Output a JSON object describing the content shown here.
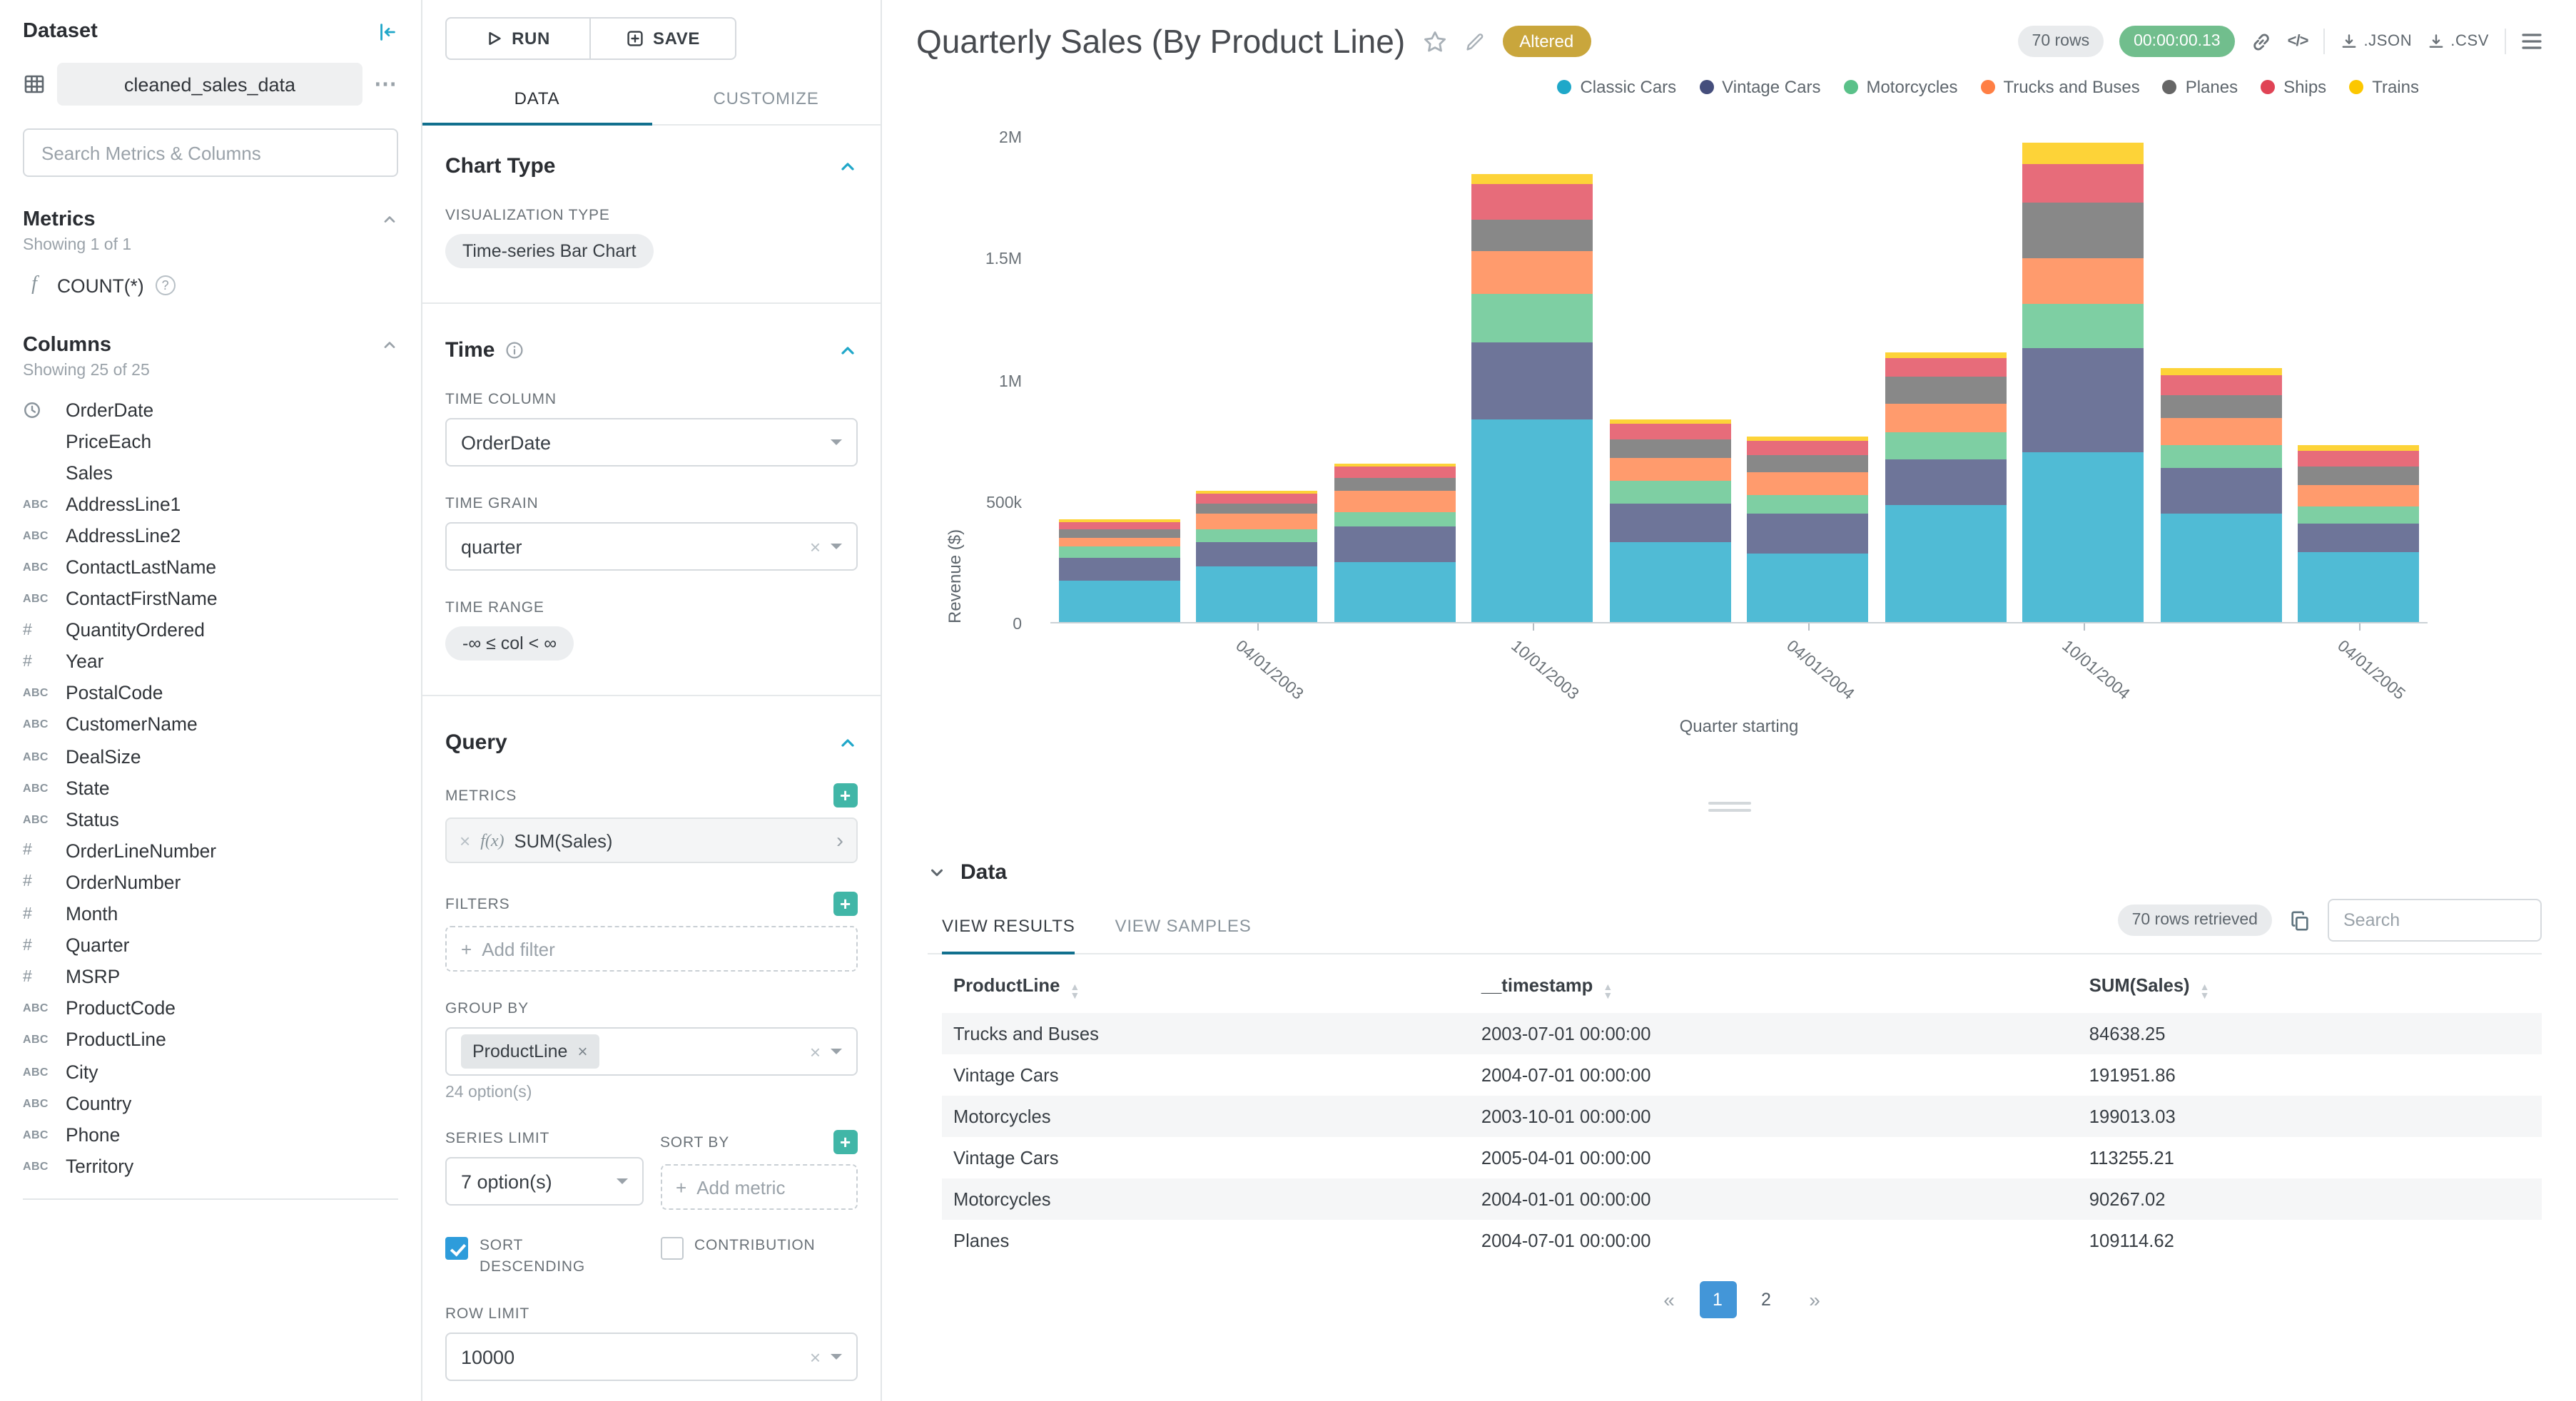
{
  "colors": {
    "primary": "#20A7C9",
    "tab_underline": "#11708E",
    "add_button": "#41B6A7",
    "altered_badge_bg": "#C9A63C",
    "timer_badge_bg": "#71BE8D",
    "checkbox_checked": "#2D9CDB",
    "pagination_active_bg": "#4396D8"
  },
  "icons": {
    "more": "⋯",
    "clear": "×",
    "help": "?",
    "plus": "+",
    "metric_fx": "f(x)",
    "code": "</>",
    "chevron_right": "›"
  },
  "dataset_panel": {
    "title": "Dataset",
    "dataset_name": "cleaned_sales_data",
    "search_placeholder": "Search Metrics & Columns",
    "metrics": {
      "title": "Metrics",
      "showing": "Showing 1 of 1",
      "items": [
        {
          "icon": "function",
          "label": "COUNT(*)"
        }
      ]
    },
    "columns": {
      "title": "Columns",
      "showing": "Showing 25 of 25",
      "items": [
        {
          "icon": "clock",
          "label": "OrderDate"
        },
        {
          "icon": "",
          "label": "PriceEach"
        },
        {
          "icon": "",
          "label": "Sales"
        },
        {
          "icon": "abc",
          "label": "AddressLine1"
        },
        {
          "icon": "abc",
          "label": "AddressLine2"
        },
        {
          "icon": "abc",
          "label": "ContactLastName"
        },
        {
          "icon": "abc",
          "label": "ContactFirstName"
        },
        {
          "icon": "num",
          "label": "QuantityOrdered"
        },
        {
          "icon": "num",
          "label": "Year"
        },
        {
          "icon": "abc",
          "label": "PostalCode"
        },
        {
          "icon": "abc",
          "label": "CustomerName"
        },
        {
          "icon": "abc",
          "label": "DealSize"
        },
        {
          "icon": "abc",
          "label": "State"
        },
        {
          "icon": "abc",
          "label": "Status"
        },
        {
          "icon": "num",
          "label": "OrderLineNumber"
        },
        {
          "icon": "num",
          "label": "OrderNumber"
        },
        {
          "icon": "num",
          "label": "Month"
        },
        {
          "icon": "num",
          "label": "Quarter"
        },
        {
          "icon": "num",
          "label": "MSRP"
        },
        {
          "icon": "abc",
          "label": "ProductCode"
        },
        {
          "icon": "abc",
          "label": "ProductLine"
        },
        {
          "icon": "abc",
          "label": "City"
        },
        {
          "icon": "abc",
          "label": "Country"
        },
        {
          "icon": "abc",
          "label": "Phone"
        },
        {
          "icon": "abc",
          "label": "Territory"
        }
      ]
    }
  },
  "control_panel": {
    "run_label": "RUN",
    "save_label": "SAVE",
    "tabs": [
      {
        "label": "DATA",
        "active": true
      },
      {
        "label": "CUSTOMIZE",
        "active": false
      }
    ],
    "chart_type": {
      "title": "Chart Type",
      "viz_type_label": "VISUALIZATION TYPE",
      "viz_type_value": "Time-series Bar Chart"
    },
    "time": {
      "title": "Time",
      "time_column_label": "TIME COLUMN",
      "time_column_value": "OrderDate",
      "time_grain_label": "TIME GRAIN",
      "time_grain_value": "quarter",
      "time_range_label": "TIME RANGE",
      "time_range_value": "-∞ ≤ col < ∞"
    },
    "query": {
      "title": "Query",
      "metrics_label": "METRICS",
      "metric_chip": "SUM(Sales)",
      "filters_label": "FILTERS",
      "add_filter_label": "Add filter",
      "group_by_label": "GROUP BY",
      "group_by_chip": "ProductLine",
      "group_by_options": "24 option(s)",
      "series_limit_label": "SERIES LIMIT",
      "series_limit_value": "7 option(s)",
      "sort_by_label": "SORT BY",
      "add_metric_label": "Add metric",
      "sort_descending_label": "SORT DESCENDING",
      "sort_descending_checked": true,
      "contribution_label": "CONTRIBUTION",
      "contribution_checked": false,
      "row_limit_label": "ROW LIMIT",
      "row_limit_value": "10000"
    }
  },
  "chart_header": {
    "title": "Quarterly Sales (By Product Line)",
    "altered_badge": "Altered",
    "rows_badge": "70 rows",
    "timer_badge": "00:00:00.13",
    "json_label": ".JSON",
    "csv_label": ".CSV"
  },
  "chart_data": {
    "type": "bar",
    "stacked": true,
    "title": "Quarterly Sales (By Product Line)",
    "xlabel": "Quarter starting",
    "ylabel": "Revenue ($)",
    "ylim": [
      0,
      2000000
    ],
    "y_ticks": [
      "0",
      "500k",
      "1M",
      "1.5M",
      "2M"
    ],
    "grid": false,
    "legend_position": "top-right",
    "x": [
      "2003-01-01",
      "2003-04-01",
      "2003-07-01",
      "2003-10-01",
      "2004-01-01",
      "2004-04-01",
      "2004-07-01",
      "2004-10-01",
      "2005-01-01",
      "2005-04-01"
    ],
    "x_tick_labels": [
      {
        "index": 1,
        "label": "04/01/2003"
      },
      {
        "index": 3,
        "label": "10/01/2003"
      },
      {
        "index": 5,
        "label": "04/01/2004"
      },
      {
        "index": 7,
        "label": "10/01/2004"
      },
      {
        "index": 9,
        "label": "04/01/2005"
      }
    ],
    "series": [
      {
        "name": "Classic Cars",
        "color": "#1FA8C9",
        "values": [
          170000,
          230000,
          250000,
          835000,
          330000,
          280000,
          480000,
          700000,
          450000,
          290000
        ]
      },
      {
        "name": "Vintage Cars",
        "color": "#454E7C",
        "values": [
          95000,
          100000,
          145000,
          320000,
          160000,
          165000,
          191951.86,
          430000,
          185000,
          113255.21
        ]
      },
      {
        "name": "Motorcycles",
        "color": "#5AC189",
        "values": [
          45000,
          55000,
          60000,
          199013.03,
          90267.02,
          80000,
          110000,
          180000,
          95000,
          75000
        ]
      },
      {
        "name": "Trucks and Buses",
        "color": "#FF7F44",
        "values": [
          40000,
          60000,
          84638.25,
          175000,
          95000,
          95000,
          120000,
          190000,
          110000,
          85000
        ]
      },
      {
        "name": "Planes",
        "color": "#666666",
        "values": [
          35000,
          45000,
          55000,
          130000,
          75000,
          70000,
          109114.62,
          230000,
          95000,
          80000
        ]
      },
      {
        "name": "Ships",
        "color": "#E04355",
        "values": [
          30000,
          38000,
          45000,
          145000,
          65000,
          55000,
          75000,
          160000,
          85000,
          65000
        ]
      },
      {
        "name": "Trains",
        "color": "#FCC700",
        "values": [
          10000,
          14000,
          12000,
          45000,
          22000,
          18000,
          28000,
          85000,
          30000,
          20000
        ]
      }
    ]
  },
  "data_section": {
    "title": "Data",
    "tabs": [
      "VIEW RESULTS",
      "VIEW SAMPLES"
    ],
    "rows_retrieved": "70 rows retrieved",
    "search_placeholder": "Search",
    "table": {
      "columns": [
        "ProductLine",
        "__timestamp",
        "SUM(Sales)"
      ],
      "rows": [
        [
          "Trucks and Buses",
          "2003-07-01 00:00:00",
          "84638.25"
        ],
        [
          "Vintage Cars",
          "2004-07-01 00:00:00",
          "191951.86"
        ],
        [
          "Motorcycles",
          "2003-10-01 00:00:00",
          "199013.03"
        ],
        [
          "Vintage Cars",
          "2005-04-01 00:00:00",
          "113255.21"
        ],
        [
          "Motorcycles",
          "2004-01-01 00:00:00",
          "90267.02"
        ],
        [
          "Planes",
          "2004-07-01 00:00:00",
          "109114.62"
        ]
      ]
    },
    "pagination": {
      "prev": "«",
      "pages": [
        "1",
        "2"
      ],
      "next": "»",
      "active": "1"
    }
  }
}
